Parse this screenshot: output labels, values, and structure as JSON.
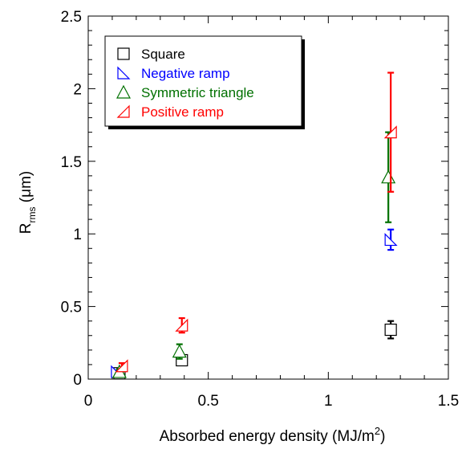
{
  "chart_data": {
    "type": "scatter",
    "xlabel_main": "Absorbed energy density (MJ/m",
    "xlabel_sup": "2",
    "xlabel_end": ")",
    "ylabel_main": "R",
    "ylabel_sub": "rms",
    "ylabel_unit": " (μm)",
    "xlim": [
      0,
      1.5
    ],
    "ylim": [
      0,
      2.5
    ],
    "x_ticks": [
      0,
      0.5,
      1,
      1.5
    ],
    "x_tick_labels": [
      "0",
      "0.5",
      "1",
      "1.5"
    ],
    "y_ticks": [
      0,
      0.5,
      1,
      1.5,
      2,
      2.5
    ],
    "y_tick_labels": [
      "0",
      "0.5",
      "1",
      "1.5",
      "2",
      "2.5"
    ],
    "grid": false,
    "legend_position": "top-left",
    "series": [
      {
        "name": "Square",
        "color": "#000000",
        "marker": "square",
        "points": [
          {
            "x": 0.13,
            "y": 0.04,
            "err": 0.01
          },
          {
            "x": 0.39,
            "y": 0.13,
            "err": 0.03
          },
          {
            "x": 1.26,
            "y": 0.34,
            "err": 0.06
          }
        ]
      },
      {
        "name": "Negative ramp",
        "color": "#0000ff",
        "marker": "negative-ramp",
        "points": [
          {
            "x": 0.12,
            "y": 0.05,
            "err": 0.01
          },
          {
            "x": 1.26,
            "y": 0.96,
            "err": 0.07
          }
        ]
      },
      {
        "name": "Symmetric triangle",
        "color": "#007000",
        "marker": "triangle",
        "points": [
          {
            "x": 0.13,
            "y": 0.05,
            "err": 0.02
          },
          {
            "x": 0.38,
            "y": 0.19,
            "err": 0.05
          },
          {
            "x": 1.25,
            "y": 1.39,
            "err": 0.31
          }
        ]
      },
      {
        "name": "Positive ramp",
        "color": "#ff0000",
        "marker": "positive-ramp",
        "points": [
          {
            "x": 0.14,
            "y": 0.09,
            "err": 0.02
          },
          {
            "x": 0.39,
            "y": 0.37,
            "err": 0.05
          },
          {
            "x": 1.26,
            "y": 1.7,
            "err": 0.41
          }
        ]
      }
    ]
  }
}
